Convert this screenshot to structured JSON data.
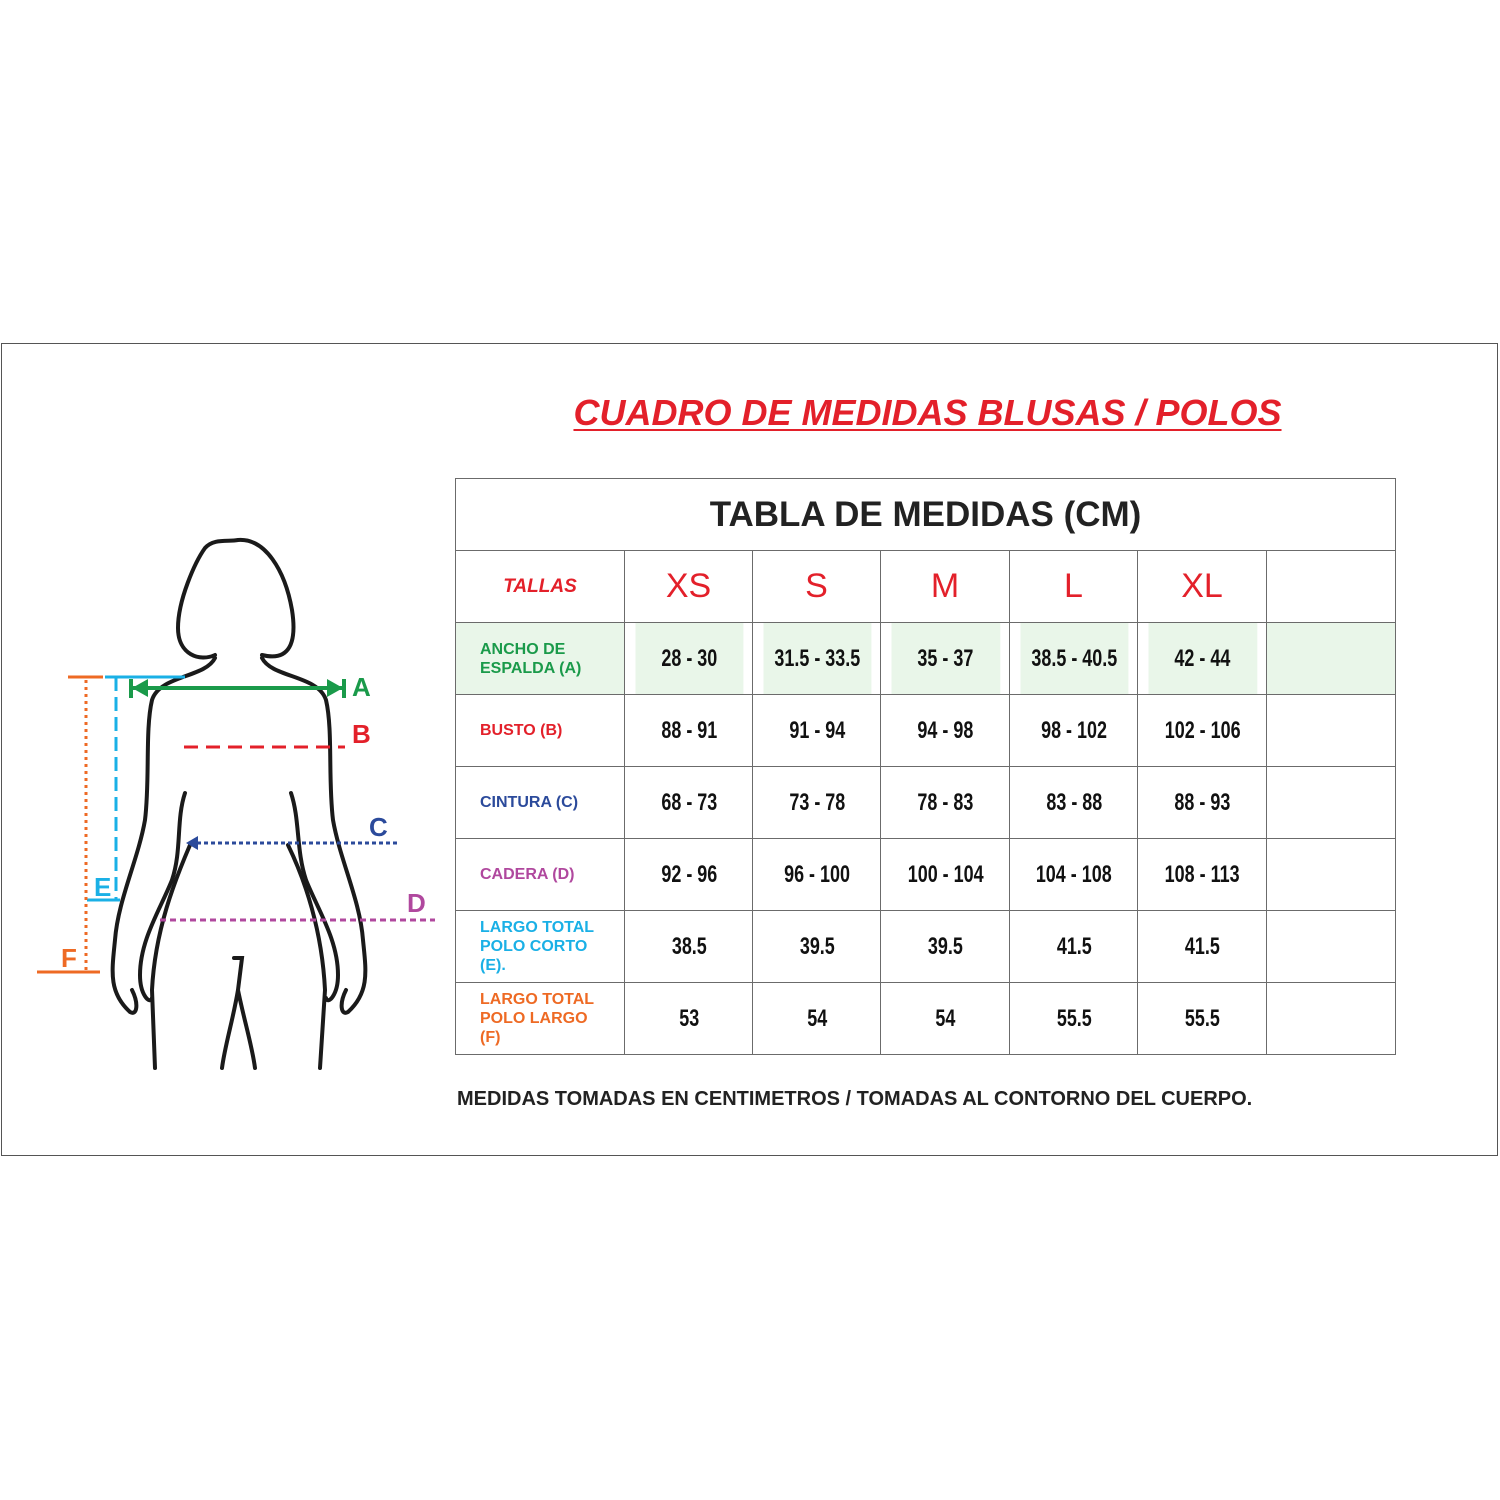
{
  "title": "CUADRO DE MEDIDAS BLUSAS / POLOS",
  "table": {
    "heading": "TABLA DE MEDIDAS (CM)",
    "sizes_label": "TALLAS",
    "sizes": [
      "XS",
      "S",
      "M",
      "L",
      "XL"
    ],
    "rows": [
      {
        "label_lines": [
          "ANCHO DE",
          "ESPALDA (A)"
        ],
        "color": "#1a9a4a",
        "values": [
          "28 - 30",
          "31.5 - 33.5",
          "35 - 37",
          "38.5 - 40.5",
          "42 - 44"
        ]
      },
      {
        "label_lines": [
          "BUSTO  (B)"
        ],
        "color": "#e3202a",
        "values": [
          "88 - 91",
          "91 - 94",
          "94 - 98",
          "98 - 102",
          "102 - 106"
        ]
      },
      {
        "label_lines": [
          "CINTURA (C)"
        ],
        "color": "#2b4a9b",
        "values": [
          "68 - 73",
          "73 - 78",
          "78 - 83",
          "83 - 88",
          "88 - 93"
        ]
      },
      {
        "label_lines": [
          "CADERA (D)"
        ],
        "color": "#b0489e",
        "values": [
          "92 - 96",
          "96 - 100",
          "100 - 104",
          "104 - 108",
          "108 - 113"
        ]
      },
      {
        "label_lines": [
          "LARGO TOTAL",
          "POLO CORTO",
          "(E)."
        ],
        "color": "#1ab0e6",
        "values": [
          "38.5",
          "39.5",
          "39.5",
          "41.5",
          "41.5"
        ]
      },
      {
        "label_lines": [
          "LARGO TOTAL",
          "POLO LARGO",
          "(F)"
        ],
        "color": "#ee6a24",
        "values": [
          "53",
          "54",
          "54",
          "55.5",
          "55.5"
        ]
      }
    ]
  },
  "note": "MEDIDAS TOMADAS EN CENTIMETROS / TOMADAS AL CONTORNO DEL CUERPO.",
  "figure": {
    "labels": {
      "A": "A",
      "B": "B",
      "C": "C",
      "D": "D",
      "E": "E",
      "F": "F"
    },
    "colors": {
      "A": "#1a9a4a",
      "B": "#e3202a",
      "C": "#2b4a9b",
      "D": "#b0489e",
      "E": "#1ab0e6",
      "F": "#ee6a24"
    }
  }
}
